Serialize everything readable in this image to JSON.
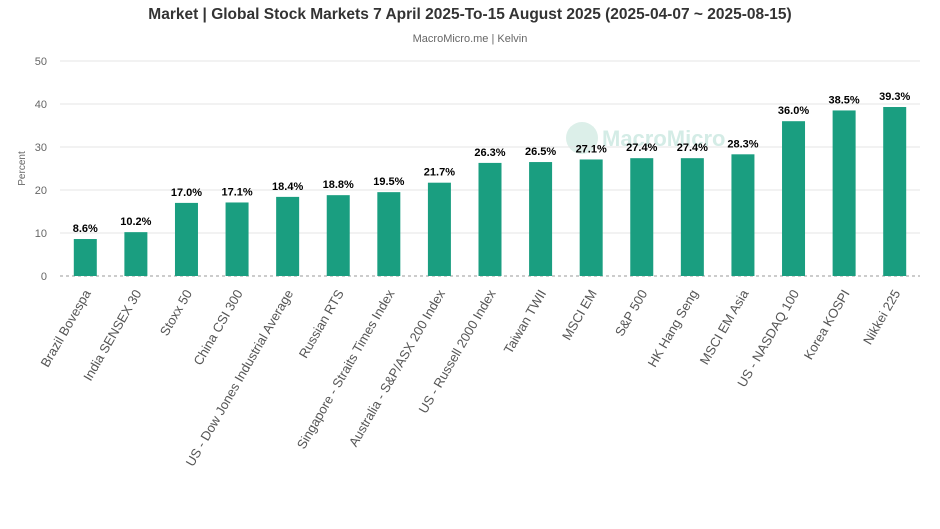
{
  "chart_data": {
    "type": "bar",
    "title": "Market | Global Stock Markets 7 April 2025-To-15 August 2025 (2025-04-07 ~ 2025-08-15)",
    "subtitle": "MacroMicro.me | Kelvin",
    "ylabel": "Percent",
    "xlabel": "",
    "ylim": [
      0,
      50
    ],
    "yticks": [
      0,
      10,
      20,
      30,
      40,
      50
    ],
    "grid": true,
    "watermark": "MacroMicro",
    "color": "#1a9e80",
    "categories": [
      "Brazil Bovespa",
      "India SENSEX 30",
      "Stoxx 50",
      "China CSI 300",
      "US - Dow Jones Industrial Average",
      "Russian RTS",
      "Singapore - Straits Times Index",
      "Australia - S&P/ASX 200 Index",
      "US - Russell 2000 Index",
      "Taiwan TWII",
      "MSCI EM",
      "S&P 500",
      "HK Hang Seng",
      "MSCI EM Asia",
      "US - NASDAQ 100",
      "Korea KOSPI",
      "Nikkei 225"
    ],
    "values": [
      8.6,
      10.2,
      17.0,
      17.1,
      18.4,
      18.8,
      19.5,
      21.7,
      26.3,
      26.5,
      27.1,
      27.4,
      27.4,
      28.3,
      36.0,
      38.5,
      39.3
    ],
    "labels": [
      "8.6%",
      "10.2%",
      "17.0%",
      "17.1%",
      "18.4%",
      "18.8%",
      "19.5%",
      "21.7%",
      "26.3%",
      "26.5%",
      "27.1%",
      "27.4%",
      "27.4%",
      "28.3%",
      "36.0%",
      "38.5%",
      "39.3%"
    ]
  }
}
